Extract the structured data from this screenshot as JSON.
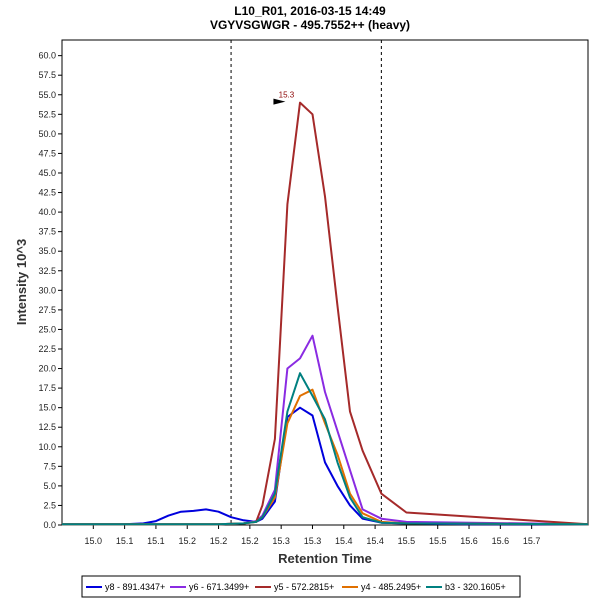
{
  "chart_data": {
    "type": "line",
    "title": "L10_R01, 2016-03-15 14:49",
    "subtitle": "VGYVSGWGR - 495.7552++ (heavy)",
    "xlabel": "Retention Time",
    "ylabel": "Intensity 10^3",
    "xlim": [
      14.95,
      15.79
    ],
    "ylim": [
      0,
      62
    ],
    "x_ticks": [
      "15.0",
      "15.1",
      "15.1",
      "15.2",
      "15.2",
      "15.2",
      "15.3",
      "15.3",
      "15.4",
      "15.4",
      "15.5",
      "15.5",
      "15.6",
      "15.6",
      "15.7"
    ],
    "x_tick_values": [
      15.0,
      15.05,
      15.1,
      15.15,
      15.2,
      15.25,
      15.3,
      15.35,
      15.4,
      15.45,
      15.5,
      15.55,
      15.6,
      15.65,
      15.7
    ],
    "y_ticks": [
      "0.0",
      "2.5",
      "5.0",
      "7.5",
      "10.0",
      "12.5",
      "15.0",
      "17.5",
      "20.0",
      "22.5",
      "25.0",
      "27.5",
      "30.0",
      "32.5",
      "35.0",
      "37.5",
      "40.0",
      "42.5",
      "45.0",
      "47.5",
      "50.0",
      "52.5",
      "55.0",
      "57.5",
      "60.0"
    ],
    "y_tick_values": [
      0,
      2.5,
      5,
      7.5,
      10,
      12.5,
      15,
      17.5,
      20,
      22.5,
      25,
      27.5,
      30,
      32.5,
      35,
      37.5,
      40,
      42.5,
      45,
      47.5,
      50,
      52.5,
      55,
      57.5,
      60
    ],
    "boundaries": [
      15.22,
      15.46
    ],
    "peak_annotation": {
      "label": "15.3",
      "x": 15.31,
      "y": 54.0
    },
    "series": [
      {
        "name": "y8 - 891.4347+",
        "color": "#0000dd",
        "x": [
          14.95,
          15.05,
          15.08,
          15.1,
          15.12,
          15.14,
          15.16,
          15.18,
          15.2,
          15.22,
          15.24,
          15.26,
          15.27,
          15.29,
          15.31,
          15.33,
          15.35,
          15.37,
          15.39,
          15.41,
          15.43,
          15.46,
          15.5,
          15.6,
          15.79
        ],
        "y": [
          0.1,
          0.1,
          0.2,
          0.5,
          1.2,
          1.7,
          1.8,
          2.0,
          1.7,
          1.0,
          0.6,
          0.4,
          0.8,
          3.0,
          13.8,
          15.0,
          14.0,
          8.0,
          5.0,
          2.5,
          0.8,
          0.3,
          0.2,
          0.1,
          0.1
        ]
      },
      {
        "name": "y6 - 671.3499+",
        "color": "#8a2be2",
        "x": [
          14.95,
          15.2,
          15.24,
          15.26,
          15.27,
          15.29,
          15.31,
          15.33,
          15.35,
          15.37,
          15.39,
          15.41,
          15.43,
          15.46,
          15.5,
          15.79
        ],
        "y": [
          0.1,
          0.1,
          0.2,
          0.5,
          1.2,
          4.5,
          20.0,
          21.3,
          24.2,
          17.0,
          12.0,
          7.0,
          2.0,
          0.8,
          0.4,
          0.1
        ]
      },
      {
        "name": "y5 - 572.2815+",
        "color": "#a52a2a",
        "x": [
          14.95,
          15.2,
          15.24,
          15.26,
          15.27,
          15.29,
          15.31,
          15.33,
          15.35,
          15.37,
          15.39,
          15.41,
          15.43,
          15.46,
          15.5,
          15.79
        ],
        "y": [
          0.1,
          0.1,
          0.2,
          0.4,
          2.5,
          11.0,
          41.0,
          54.0,
          52.5,
          42.0,
          28.0,
          14.5,
          9.5,
          4.0,
          1.6,
          0.1
        ]
      },
      {
        "name": "y4 - 485.2495+",
        "color": "#e07000",
        "x": [
          14.95,
          15.2,
          15.24,
          15.26,
          15.27,
          15.29,
          15.31,
          15.33,
          15.35,
          15.37,
          15.39,
          15.41,
          15.43,
          15.46,
          15.5,
          15.79
        ],
        "y": [
          0.1,
          0.1,
          0.2,
          0.4,
          1.0,
          3.5,
          13.0,
          16.5,
          17.3,
          13.0,
          9.0,
          4.0,
          1.5,
          0.4,
          0.2,
          0.1
        ]
      },
      {
        "name": "b3 - 320.1605+",
        "color": "#008080",
        "x": [
          14.95,
          15.2,
          15.24,
          15.26,
          15.27,
          15.29,
          15.31,
          15.33,
          15.35,
          15.37,
          15.39,
          15.41,
          15.43,
          15.46,
          15.5,
          15.79
        ],
        "y": [
          0.1,
          0.1,
          0.2,
          0.4,
          1.0,
          4.0,
          14.5,
          19.4,
          16.5,
          13.5,
          8.0,
          3.5,
          1.0,
          0.3,
          0.2,
          0.1
        ]
      }
    ],
    "legend_position": "bottom"
  }
}
